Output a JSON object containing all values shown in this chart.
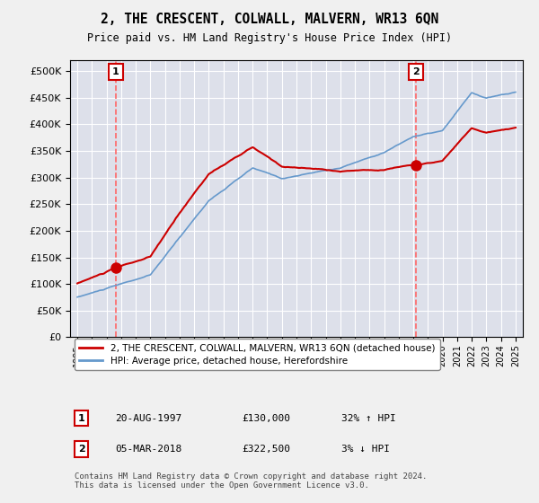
{
  "title": "2, THE CRESCENT, COLWALL, MALVERN, WR13 6QN",
  "subtitle": "Price paid vs. HM Land Registry's House Price Index (HPI)",
  "legend_line1": "2, THE CRESCENT, COLWALL, MALVERN, WR13 6QN (detached house)",
  "legend_line2": "HPI: Average price, detached house, Herefordshire",
  "annotation1_label": "1",
  "annotation1_date": "20-AUG-1997",
  "annotation1_price": "£130,000",
  "annotation1_hpi": "32% ↑ HPI",
  "annotation2_label": "2",
  "annotation2_date": "05-MAR-2018",
  "annotation2_price": "£322,500",
  "annotation2_hpi": "3% ↓ HPI",
  "footer": "Contains HM Land Registry data © Crown copyright and database right 2024.\nThis data is licensed under the Open Government Licence v3.0.",
  "hpi_color": "#6699cc",
  "price_color": "#cc0000",
  "vline_color": "#ff6666",
  "background_color": "#f0f0f0",
  "plot_bg_color": "#dde0ea",
  "ylim": [
    0,
    520000
  ],
  "yticks": [
    0,
    50000,
    100000,
    150000,
    200000,
    250000,
    300000,
    350000,
    400000,
    450000,
    500000
  ],
  "year_start": 1995,
  "year_end": 2025,
  "sale1_year": 1997.638,
  "sale1_price": 130000,
  "sale2_year": 2018.17,
  "sale2_price": 322500
}
